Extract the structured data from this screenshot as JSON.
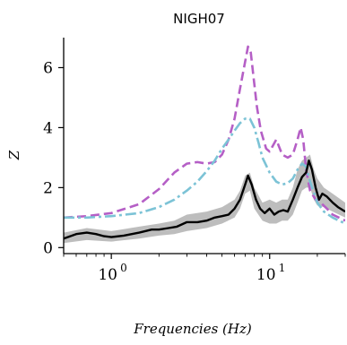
{
  "chart_data": {
    "type": "line",
    "title": "NIGH07",
    "xlabel": "Frequencies (Hz)",
    "ylabel": "Z",
    "xscale": "log",
    "xlim": [
      0.5,
      30
    ],
    "ylim": [
      -0.2,
      7.0
    ],
    "x_ticks": [
      {
        "base": "10",
        "exp": "0"
      },
      {
        "base": "10",
        "exp": "1"
      }
    ],
    "y_ticks": [
      "0",
      "2",
      "4",
      "6"
    ],
    "y_tick_values": [
      0,
      2,
      4,
      6
    ],
    "grid": false,
    "legend": "none",
    "series": [
      {
        "style": "dashed",
        "color": "#b55fc6",
        "x": [
          0.5,
          0.7,
          1.0,
          1.5,
          2.0,
          2.5,
          3.0,
          3.5,
          4.0,
          4.5,
          5.0,
          5.5,
          6.0,
          6.5,
          7.0,
          7.3,
          7.6,
          7.9,
          8.3,
          8.8,
          9.5,
          10.0,
          11.0,
          12.0,
          13.0,
          14.0,
          15.0,
          15.7,
          16.3,
          17.0,
          18.0,
          19.5,
          21.0,
          23.0,
          25.0,
          30.0
        ],
        "y": [
          1.0,
          1.05,
          1.15,
          1.45,
          1.95,
          2.5,
          2.8,
          2.85,
          2.8,
          2.85,
          3.1,
          3.6,
          4.3,
          5.3,
          6.2,
          6.7,
          6.5,
          5.7,
          4.7,
          3.9,
          3.3,
          3.2,
          3.6,
          3.1,
          3.0,
          3.1,
          3.6,
          4.0,
          3.6,
          2.6,
          1.9,
          1.6,
          1.5,
          1.3,
          1.1,
          0.9
        ]
      },
      {
        "style": "dashdot",
        "color": "#7cc3d6",
        "x": [
          0.5,
          0.7,
          1.0,
          1.5,
          2.0,
          2.5,
          3.0,
          3.5,
          4.0,
          4.5,
          5.0,
          5.5,
          6.0,
          6.5,
          7.0,
          7.5,
          8.0,
          8.5,
          9.0,
          10.0,
          11.0,
          12.0,
          13.0,
          14.0,
          15.0,
          16.0,
          17.0,
          18.0,
          20.0,
          22.0,
          25.0,
          30.0
        ],
        "y": [
          1.0,
          1.0,
          1.05,
          1.15,
          1.35,
          1.6,
          1.9,
          2.2,
          2.55,
          2.9,
          3.3,
          3.6,
          3.9,
          4.15,
          4.3,
          4.3,
          4.0,
          3.5,
          3.0,
          2.5,
          2.2,
          2.1,
          2.15,
          2.3,
          2.6,
          2.8,
          2.7,
          2.2,
          1.5,
          1.2,
          1.0,
          0.8
        ]
      },
      {
        "style": "solid",
        "color": "#000000",
        "x": [
          0.5,
          0.6,
          0.7,
          0.8,
          0.9,
          1.0,
          1.2,
          1.5,
          1.8,
          2.0,
          2.3,
          2.6,
          3.0,
          3.5,
          4.0,
          4.5,
          5.0,
          5.5,
          6.0,
          6.5,
          7.0,
          7.3,
          7.7,
          8.2,
          8.7,
          9.3,
          10.0,
          10.7,
          11.4,
          12.2,
          13.0,
          14.0,
          15.0,
          16.0,
          17.0,
          17.7,
          18.5,
          19.5,
          20.5,
          21.5,
          23.0,
          25.0,
          27.0,
          30.0
        ],
        "y": [
          0.3,
          0.45,
          0.5,
          0.45,
          0.38,
          0.35,
          0.4,
          0.5,
          0.6,
          0.6,
          0.65,
          0.7,
          0.85,
          0.85,
          0.9,
          1.0,
          1.05,
          1.1,
          1.3,
          1.6,
          2.1,
          2.4,
          2.1,
          1.6,
          1.3,
          1.15,
          1.3,
          1.1,
          1.2,
          1.25,
          1.2,
          1.6,
          2.0,
          2.35,
          2.5,
          2.9,
          2.6,
          2.0,
          1.6,
          1.8,
          1.7,
          1.5,
          1.35,
          1.2
        ]
      }
    ],
    "band": {
      "color": "#bdbdbd",
      "x": [
        0.5,
        0.7,
        1.0,
        1.5,
        2.0,
        2.5,
        3.0,
        4.0,
        5.0,
        6.0,
        6.5,
        7.0,
        7.5,
        8.0,
        9.0,
        10.0,
        11.0,
        12.0,
        13.0,
        14.0,
        15.0,
        16.0,
        17.0,
        18.0,
        19.0,
        20.0,
        22.0,
        25.0,
        30.0
      ],
      "lower": [
        0.15,
        0.25,
        0.2,
        0.3,
        0.4,
        0.45,
        0.55,
        0.65,
        0.8,
        1.0,
        1.3,
        1.8,
        1.9,
        1.3,
        0.9,
        0.8,
        0.8,
        0.9,
        0.9,
        1.1,
        1.5,
        1.9,
        2.0,
        2.0,
        1.6,
        1.4,
        1.35,
        1.2,
        1.0
      ],
      "upper": [
        0.5,
        0.65,
        0.55,
        0.7,
        0.8,
        0.9,
        1.1,
        1.2,
        1.35,
        1.6,
        1.9,
        2.4,
        2.5,
        2.0,
        1.5,
        1.6,
        1.5,
        1.6,
        1.6,
        2.0,
        2.6,
        2.9,
        3.0,
        3.1,
        2.6,
        2.3,
        2.0,
        1.8,
        1.5
      ]
    }
  }
}
